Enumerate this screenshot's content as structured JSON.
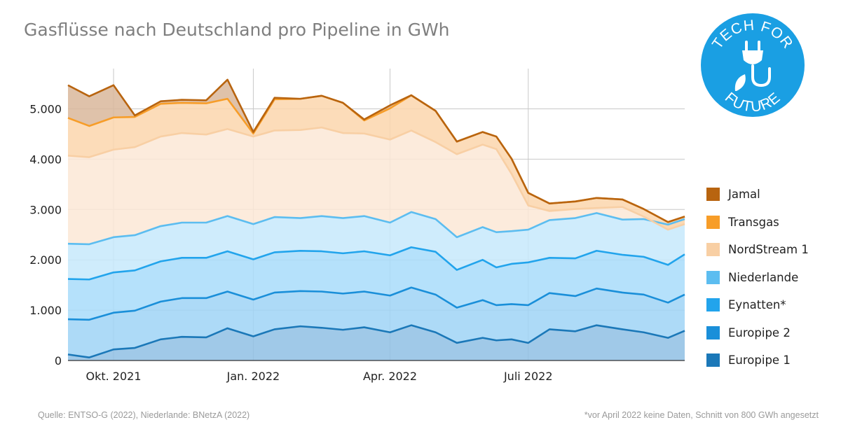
{
  "title": "Gasflüsse nach Deutschland pro Pipeline in GWh",
  "source": "Quelle: ENTSO-G (2022), Niederlande: BNetzA (2022)",
  "footnote": "*vor April 2022 keine Daten, Schnitt von 800 GWh angesetzt",
  "logo": {
    "text_top": "TECH FOR",
    "text_bottom": "FUTURE",
    "color": "#1a9fe3",
    "icon": "plug-leaf-icon"
  },
  "chart_data": {
    "type": "area",
    "stacked": true,
    "title": "Gasflüsse nach Deutschland pro Pipeline in GWh",
    "xlabel": "",
    "ylabel": "",
    "ylim": [
      0,
      5800
    ],
    "yticks": [
      0,
      1000,
      2000,
      3000,
      4000,
      5000
    ],
    "ytick_labels": [
      "0",
      "1.000",
      "2.000",
      "3.000",
      "4.000",
      "5.000"
    ],
    "xlim": [
      "2021-09-01",
      "2022-10-12"
    ],
    "xticks": [
      "2021-10-01",
      "2022-01-01",
      "2022-04-01",
      "2022-07-01"
    ],
    "xtick_labels": [
      "Okt. 2021",
      "Jan. 2022",
      "Apr. 2022",
      "Juli 2022"
    ],
    "grid": true,
    "legend_position": "right",
    "x": [
      "2021-09-01",
      "2021-09-15",
      "2021-10-01",
      "2021-10-15",
      "2021-11-01",
      "2021-11-15",
      "2021-12-01",
      "2021-12-15",
      "2022-01-01",
      "2022-01-15",
      "2022-02-01",
      "2022-02-15",
      "2022-03-01",
      "2022-03-15",
      "2022-04-01",
      "2022-04-15",
      "2022-05-01",
      "2022-05-15",
      "2022-06-01",
      "2022-06-10",
      "2022-06-20",
      "2022-07-01",
      "2022-07-15",
      "2022-08-01",
      "2022-08-15",
      "2022-09-01",
      "2022-09-15",
      "2022-10-01",
      "2022-10-12"
    ],
    "series": [
      {
        "name": "Europipe 1",
        "color": "#1b78b8",
        "values": [
          120,
          60,
          220,
          250,
          420,
          470,
          460,
          640,
          480,
          620,
          680,
          650,
          610,
          660,
          560,
          700,
          560,
          350,
          450,
          400,
          420,
          350,
          620,
          580,
          700,
          620,
          560,
          450,
          590
        ]
      },
      {
        "name": "Europipe 2",
        "color": "#1a8fd9",
        "values": [
          700,
          750,
          730,
          740,
          750,
          770,
          780,
          730,
          730,
          730,
          700,
          720,
          720,
          710,
          730,
          750,
          750,
          700,
          750,
          700,
          700,
          750,
          720,
          700,
          730,
          730,
          750,
          700,
          720
        ]
      },
      {
        "name": "Eynatten*",
        "color": "#22a4ec",
        "values": [
          800,
          800,
          800,
          800,
          800,
          800,
          800,
          800,
          800,
          800,
          800,
          800,
          800,
          800,
          800,
          800,
          850,
          750,
          800,
          750,
          800,
          850,
          700,
          750,
          750,
          750,
          750,
          750,
          800
        ]
      },
      {
        "name": "Niederlande",
        "color": "#5cbdf0",
        "values": [
          700,
          700,
          700,
          700,
          700,
          700,
          700,
          700,
          700,
          700,
          650,
          700,
          700,
          700,
          650,
          700,
          650,
          650,
          650,
          700,
          650,
          650,
          750,
          800,
          750,
          700,
          750,
          800,
          700
        ]
      },
      {
        "name": "NordStream 1",
        "color": "#f8cfa4",
        "values": [
          1750,
          1730,
          1740,
          1750,
          1780,
          1780,
          1750,
          1730,
          1740,
          1720,
          1750,
          1760,
          1690,
          1640,
          1650,
          1620,
          1530,
          1650,
          1640,
          1650,
          1140,
          480,
          180,
          180,
          100,
          250,
          50,
          -100,
          -100
        ]
      },
      {
        "name": "Transgas",
        "color": "#f79d28",
        "values": [
          750,
          620,
          640,
          600,
          650,
          600,
          620,
          600,
          60,
          620,
          620,
          630,
          600,
          260,
          620,
          700,
          620,
          250,
          250,
          250,
          300,
          250,
          150,
          150,
          200,
          150,
          150,
          150,
          150
        ]
      },
      {
        "name": "Jamal",
        "color": "#b8640f",
        "values": [
          650,
          590,
          640,
          30,
          50,
          60,
          60,
          380,
          30,
          30,
          0,
          0,
          0,
          20,
          60,
          0,
          0,
          0,
          0,
          0,
          0,
          0,
          0,
          0,
          0,
          0,
          0,
          0,
          0
        ]
      }
    ]
  }
}
